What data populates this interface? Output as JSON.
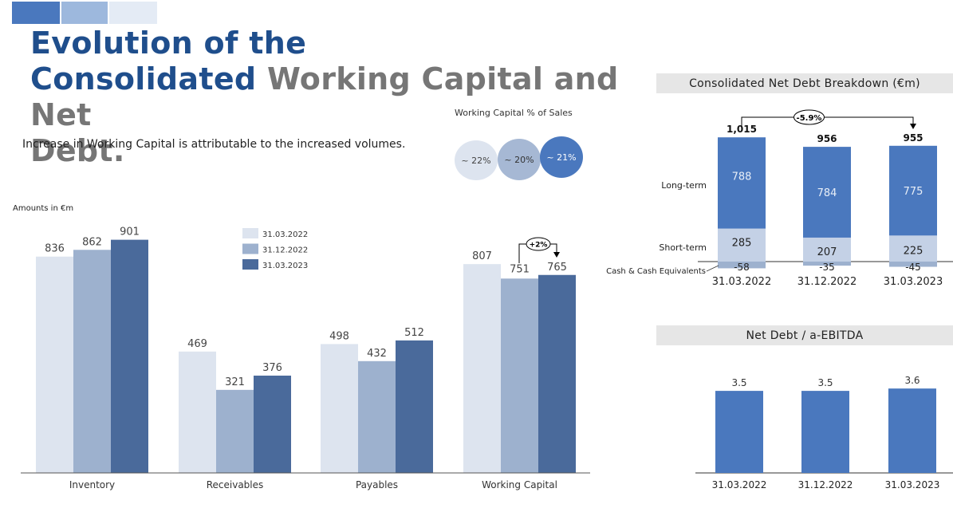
{
  "colors": {
    "light": "#dde4ef",
    "mid": "#9db1ce",
    "dark": "#4a6a9b",
    "nd_dark": "#4a78be",
    "nd_light": "#c4d1e6",
    "title_blue": "#1f4e8c",
    "title_gray": "#767676"
  },
  "header": {
    "title_line1": "Evolution of the",
    "title_line2_blue": "Consolidated",
    "title_line2_gray": "Working Capital and Net",
    "title_line3_gray": "Debt.",
    "subtitle": "Increase in Working Capital is attributable to the increased volumes."
  },
  "wc_pct": {
    "title": "Working Capital % of Sales",
    "items": [
      {
        "label": "~ 22%"
      },
      {
        "label": "~ 20%"
      },
      {
        "label": "~ 21%"
      }
    ]
  },
  "chart_data": [
    {
      "type": "bar",
      "title": "",
      "ylabel": "Amounts in €m",
      "categories": [
        "Inventory",
        "Receivables",
        "Payables",
        "Working Capital"
      ],
      "series": [
        {
          "name": "31.03.2022",
          "values": [
            836,
            469,
            498,
            807
          ]
        },
        {
          "name": "31.12.2022",
          "values": [
            862,
            321,
            432,
            751
          ]
        },
        {
          "name": "31.03.2023",
          "values": [
            901,
            376,
            512,
            765
          ]
        }
      ],
      "annotations": [
        {
          "text": "+2%",
          "from": "31.12.2022",
          "to": "31.03.2023",
          "category": "Working Capital"
        }
      ],
      "legend": "top-center",
      "ylim": [
        0,
        1000
      ],
      "grid": false
    },
    {
      "type": "bar",
      "stacked": true,
      "title": "Consolidated Net Debt Breakdown (€m)",
      "categories": [
        "31.03.2022",
        "31.12.2022",
        "31.03.2023"
      ],
      "totals": [
        "1,015",
        "956",
        "955"
      ],
      "series": [
        {
          "name": "Long-term",
          "values": [
            788,
            784,
            775
          ]
        },
        {
          "name": "Short-term",
          "values": [
            285,
            207,
            225
          ]
        },
        {
          "name": "Cash & Cash Equivalents",
          "values": [
            -58,
            -35,
            -45
          ]
        }
      ],
      "annotations": [
        {
          "text": "-5.9%",
          "from": "31.03.2022",
          "to": "31.03.2023"
        }
      ],
      "grid": false
    },
    {
      "type": "bar",
      "title": "Net Debt / a-EBITDA",
      "categories": [
        "31.03.2022",
        "31.12.2022",
        "31.03.2023"
      ],
      "values": [
        3.5,
        3.5,
        3.6
      ],
      "grid": false
    }
  ]
}
